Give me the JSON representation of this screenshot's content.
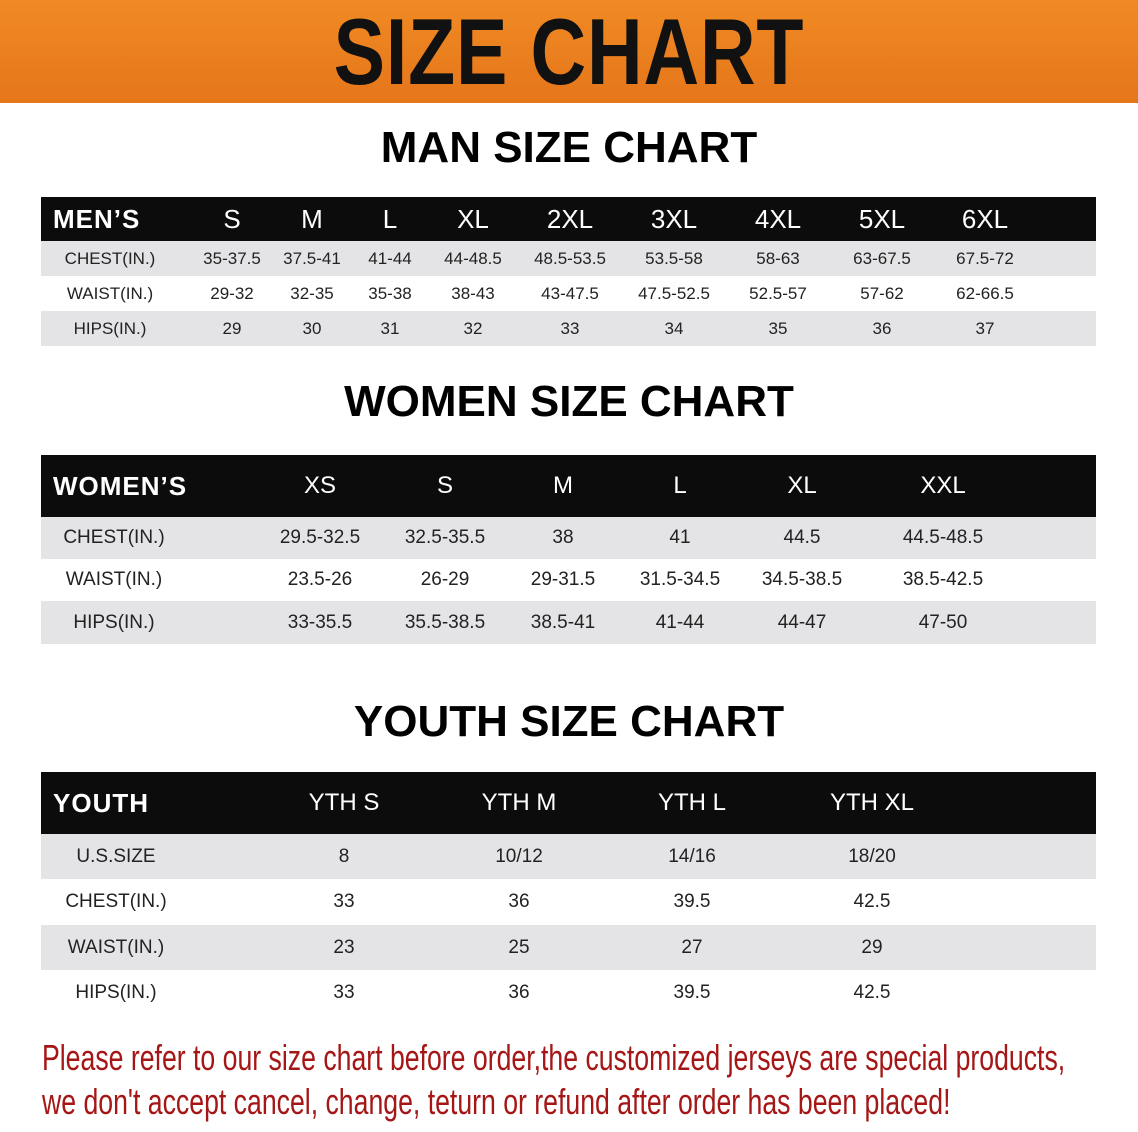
{
  "banner": {
    "title": "SIZE CHART",
    "color": "#e97d1f"
  },
  "men": {
    "title": "MAN SIZE CHART",
    "header_label": "MEN’S",
    "sizes": [
      "S",
      "M",
      "L",
      "XL",
      "2XL",
      "3XL",
      "4XL",
      "5XL",
      "6XL"
    ],
    "rows": [
      {
        "label": "CHEST(IN.)",
        "values": [
          "35-37.5",
          "37.5-41",
          "41-44",
          "44-48.5",
          "48.5-53.5",
          "53.5-58",
          "58-63",
          "63-67.5",
          "67.5-72"
        ]
      },
      {
        "label": "WAIST(IN.)",
        "values": [
          "29-32",
          "32-35",
          "35-38",
          "38-43",
          "43-47.5",
          "47.5-52.5",
          "52.5-57",
          "57-62",
          "62-66.5"
        ]
      },
      {
        "label": "HIPS(IN.)",
        "values": [
          "29",
          "30",
          "31",
          "32",
          "33",
          "34",
          "35",
          "36",
          "37"
        ]
      }
    ]
  },
  "women": {
    "title": "WOMEN SIZE CHART",
    "header_label": "WOMEN’S",
    "sizes": [
      "XS",
      "S",
      "M",
      "L",
      "XL",
      "XXL"
    ],
    "rows": [
      {
        "label": "CHEST(IN.)",
        "values": [
          "29.5-32.5",
          "32.5-35.5",
          "38",
          "41",
          "44.5",
          "44.5-48.5"
        ]
      },
      {
        "label": "WAIST(IN.)",
        "values": [
          "23.5-26",
          "26-29",
          "29-31.5",
          "31.5-34.5",
          "34.5-38.5",
          "38.5-42.5"
        ]
      },
      {
        "label": "HIPS(IN.)",
        "values": [
          "33-35.5",
          "35.5-38.5",
          "38.5-41",
          "41-44",
          "44-47",
          "47-50"
        ]
      }
    ]
  },
  "youth": {
    "title": "YOUTH SIZE CHART",
    "header_label": "YOUTH",
    "sizes": [
      "YTH S",
      "YTH M",
      "YTH L",
      "YTH XL"
    ],
    "rows": [
      {
        "label": "U.S.SIZE",
        "values": [
          "8",
          "10/12",
          "14/16",
          "18/20"
        ]
      },
      {
        "label": "CHEST(IN.)",
        "values": [
          "33",
          "36",
          "39.5",
          "42.5"
        ]
      },
      {
        "label": "WAIST(IN.)",
        "values": [
          "23",
          "25",
          "27",
          "29"
        ]
      },
      {
        "label": "HIPS(IN.)",
        "values": [
          "33",
          "36",
          "39.5",
          "42.5"
        ]
      }
    ]
  },
  "notice": {
    "line1": "Please refer to our size chart before order,the customized jerseys are special products,",
    "line2": "we don't accept cancel, change, teturn or refund after order has been placed!",
    "color": "#a51616"
  }
}
